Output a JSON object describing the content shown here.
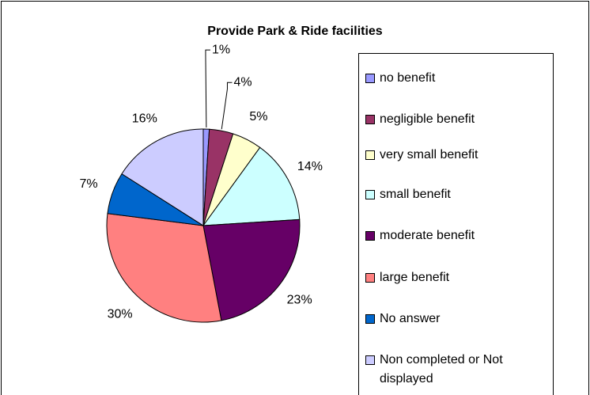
{
  "chart_data": {
    "type": "pie",
    "title": "Provide Park & Ride facilities",
    "categories": [
      "no benefit",
      "negligible benefit",
      "very small benefit",
      "small benefit",
      "moderate benefit",
      "large benefit",
      "No answer",
      "Non completed or Not displayed"
    ],
    "values": [
      1,
      4,
      5,
      14,
      23,
      30,
      7,
      16
    ],
    "value_labels": [
      "1%",
      "4%",
      "5%",
      "14%",
      "23%",
      "30%",
      "7%",
      "16%"
    ],
    "colors": [
      "#9999ff",
      "#993366",
      "#ffffcc",
      "#ccffff",
      "#660066",
      "#ff8080",
      "#0066cc",
      "#ccccff"
    ],
    "legend": "right"
  }
}
